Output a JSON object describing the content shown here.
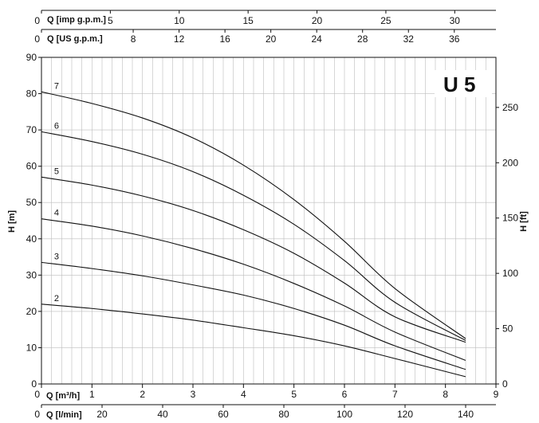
{
  "chart_data": {
    "type": "line",
    "title": "U 5",
    "xlabel": "Q [m³/h]",
    "ylabel": "H [m]",
    "ylabel_right": "H [ft]",
    "x_range": [
      0,
      9
    ],
    "y_range": [
      0,
      90
    ],
    "grid": true,
    "x_ticks": [
      "0",
      "1",
      "2",
      "3",
      "4",
      "5",
      "6",
      "7",
      "8",
      "9"
    ],
    "y_ticks": [
      "0",
      "10",
      "20",
      "30",
      "40",
      "50",
      "60",
      "70",
      "80",
      "90"
    ],
    "secondary_axes": {
      "right_ft": {
        "label": "H [ft]",
        "ticks": [
          0,
          50,
          100,
          150,
          200,
          250
        ],
        "tick_labels": [
          "0",
          "50",
          "100",
          "150",
          "200",
          "250"
        ]
      },
      "bottom_lmin": {
        "label": "Q [l/min]",
        "ticks": [
          0,
          20,
          40,
          60,
          80,
          100,
          120,
          140
        ],
        "tick_labels": [
          "0",
          "20",
          "40",
          "60",
          "80",
          "100",
          "120",
          "140"
        ]
      },
      "top_usgpm": {
        "label": "Q [US g.p.m.]",
        "ticks": [
          0,
          8,
          12,
          16,
          20,
          24,
          28,
          32,
          36
        ],
        "tick_labels": [
          "0",
          "8",
          "12",
          "16",
          "20",
          "24",
          "28",
          "32",
          "36"
        ]
      },
      "top_impgpm": {
        "label": "Q [imp g.p.m.]",
        "ticks": [
          0,
          5,
          10,
          15,
          20,
          25,
          30
        ],
        "tick_labels": [
          "0",
          "5",
          "10",
          "15",
          "20",
          "25",
          "30"
        ]
      }
    },
    "series": [
      {
        "name": "2",
        "x": [
          0,
          1,
          2,
          3,
          4,
          5,
          6,
          7,
          8.4
        ],
        "y": [
          22,
          20.8,
          19.3,
          17.6,
          15.5,
          13.3,
          10.5,
          7,
          2
        ]
      },
      {
        "name": "3",
        "x": [
          0,
          1,
          2,
          3,
          4,
          5,
          6,
          7,
          8.4
        ],
        "y": [
          33.5,
          31.8,
          29.8,
          27.3,
          24.5,
          20.8,
          16.2,
          10.5,
          4
        ]
      },
      {
        "name": "4",
        "x": [
          0,
          1,
          2,
          3,
          4,
          5,
          6,
          7,
          8.4
        ],
        "y": [
          45.5,
          43.5,
          40.8,
          37.3,
          33,
          27.7,
          21.5,
          14.3,
          6.5
        ]
      },
      {
        "name": "5",
        "x": [
          0,
          1,
          2,
          3,
          4,
          5,
          6,
          7,
          8.4
        ],
        "y": [
          57,
          54.8,
          51.8,
          47.8,
          42.5,
          36,
          27.8,
          18.5,
          11.5
        ]
      },
      {
        "name": "6",
        "x": [
          0,
          1,
          2,
          3,
          4,
          5,
          6,
          7,
          8.4
        ],
        "y": [
          69.5,
          66.8,
          63.3,
          58.5,
          52,
          44,
          34,
          22.5,
          12
        ]
      },
      {
        "name": "7",
        "x": [
          0,
          1,
          2,
          3,
          4,
          5,
          6,
          7,
          8.4
        ],
        "y": [
          80.5,
          77.3,
          73.3,
          67.8,
          60.3,
          50.8,
          39.3,
          26.3,
          12.5
        ]
      }
    ]
  }
}
